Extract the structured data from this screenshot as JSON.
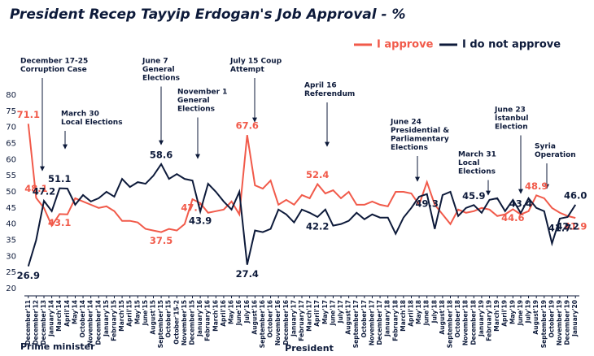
{
  "chart_data": {
    "type": "line",
    "title": "President Recep Tayyip Erdogan's Job Approval - %",
    "categories": [
      "December'11",
      "December'12",
      "December'13",
      "January'14",
      "March'14",
      "April'14",
      "May'14",
      "October'14",
      "November'14",
      "December'14",
      "January'15",
      "February'15",
      "March'15",
      "April'15",
      "May'15",
      "June'15",
      "August'15",
      "September'15",
      "October'15",
      "October'15-2",
      "November'15",
      "December'15",
      "January'16",
      "February'16",
      "March'16",
      "April'16",
      "May'16",
      "June'16",
      "July'16",
      "August'16",
      "September'16",
      "October'16",
      "November'16",
      "December'16",
      "January'17",
      "February'17",
      "March'17",
      "April'17",
      "May'17",
      "June'17",
      "July'17",
      "August'17",
      "September'17",
      "October'17",
      "November'17",
      "December'17",
      "January'18",
      "February'18",
      "March'18",
      "April'18",
      "May'18",
      "June'18",
      "July'18",
      "August'18",
      "September'18",
      "October'18",
      "November'18",
      "December'18",
      "January'19",
      "February'19",
      "March'19",
      "April'19",
      "May'19",
      "June'19",
      "July'19",
      "August'19",
      "September'19",
      "October'19",
      "November'19",
      "December'19",
      "January'20"
    ],
    "series": [
      {
        "name": "I approve",
        "color": "#f15a4a",
        "values": [
          71.1,
          48.1,
          45,
          39.5,
          43.1,
          43,
          48,
          47,
          46,
          45,
          45.5,
          44,
          41,
          41,
          40.5,
          38.5,
          38,
          37.5,
          38.5,
          38,
          40,
          47.7,
          46.5,
          43.5,
          44,
          44.5,
          47,
          43,
          67.6,
          52,
          51,
          53.5,
          46,
          47.5,
          46,
          49,
          48,
          52.4,
          49.5,
          50.5,
          48,
          50,
          46,
          46,
          47,
          46,
          45.5,
          50,
          50,
          49.5,
          46,
          53,
          46,
          43,
          40,
          44.5,
          43.5,
          44,
          45,
          44.5,
          42.5,
          43,
          44.6,
          43,
          44,
          48.9,
          48,
          45,
          43.5,
          42.5,
          41.9
        ],
        "value_labels": [
          "71.1",
          "48.1",
          null,
          null,
          "43.1",
          null,
          null,
          null,
          null,
          null,
          null,
          null,
          null,
          null,
          null,
          null,
          null,
          "37.5",
          null,
          null,
          null,
          "47.7",
          null,
          null,
          null,
          null,
          null,
          null,
          "67.6",
          null,
          null,
          null,
          null,
          null,
          null,
          null,
          null,
          "52.4",
          null,
          null,
          null,
          null,
          null,
          null,
          null,
          null,
          null,
          null,
          null,
          null,
          null,
          null,
          null,
          null,
          null,
          null,
          null,
          null,
          null,
          null,
          null,
          null,
          "44.6",
          null,
          null,
          "48.9",
          null,
          null,
          null,
          null,
          "41.9"
        ]
      },
      {
        "name": "I do not approve",
        "color": "#0d1a3a",
        "values": [
          26.9,
          35,
          47.2,
          44,
          51.1,
          51,
          46,
          49,
          47,
          48,
          50,
          48.5,
          54,
          51.5,
          53,
          52.5,
          55,
          58.6,
          54,
          55.5,
          54,
          53.5,
          43.9,
          52.5,
          50,
          47,
          44.5,
          50,
          27.4,
          38,
          37.5,
          38.5,
          44.5,
          43,
          40.5,
          44.5,
          43.5,
          42.2,
          44.5,
          39.5,
          40,
          41,
          43.5,
          41.5,
          43,
          42,
          42,
          37,
          42,
          45,
          48.5,
          49.3,
          38.5,
          49,
          50,
          42.5,
          45,
          45.9,
          43.5,
          47.5,
          48,
          44,
          47.5,
          43.4,
          48,
          45,
          44,
          34,
          41.7,
          42.2,
          46
        ],
        "value_labels": [
          "26.9",
          null,
          "47.2",
          null,
          "51.1",
          null,
          null,
          null,
          null,
          null,
          null,
          null,
          null,
          null,
          null,
          null,
          null,
          "58.6",
          null,
          null,
          null,
          null,
          "43.9",
          null,
          null,
          null,
          null,
          null,
          "27.4",
          null,
          null,
          null,
          null,
          null,
          null,
          null,
          null,
          "42.2",
          null,
          null,
          null,
          null,
          null,
          null,
          null,
          null,
          null,
          null,
          null,
          null,
          null,
          "49.3",
          null,
          null,
          null,
          null,
          null,
          "45.9",
          null,
          null,
          null,
          null,
          null,
          "43.4",
          null,
          null,
          null,
          null,
          "41.7",
          "42.2",
          "46.0"
        ]
      }
    ],
    "ylim": [
      20,
      80
    ],
    "yticks": [
      20,
      25,
      30,
      35,
      40,
      45,
      50,
      55,
      60,
      65,
      70,
      75,
      80
    ],
    "annotations": [
      {
        "lines": [
          "December 17-25",
          "Corruption Case"
        ]
      },
      {
        "lines": [
          "March 30",
          "Local Elections"
        ]
      },
      {
        "lines": [
          "June 7",
          "General",
          "Elections"
        ]
      },
      {
        "lines": [
          "November 1",
          "General",
          "Elections"
        ]
      },
      {
        "lines": [
          "July 15 Coup",
          "Attempt"
        ]
      },
      {
        "lines": [
          "April 16",
          "Referendum"
        ]
      },
      {
        "lines": [
          "June 24",
          "Presidential &",
          "Parliamentary",
          "Elections"
        ]
      },
      {
        "lines": [
          "March 31",
          "Local",
          "Elections"
        ]
      },
      {
        "lines": [
          "June 23",
          "İstanbul",
          "Election"
        ]
      },
      {
        "lines": [
          "Syria",
          "Operation"
        ]
      }
    ],
    "periods": [
      "Prime minister",
      "President"
    ]
  }
}
